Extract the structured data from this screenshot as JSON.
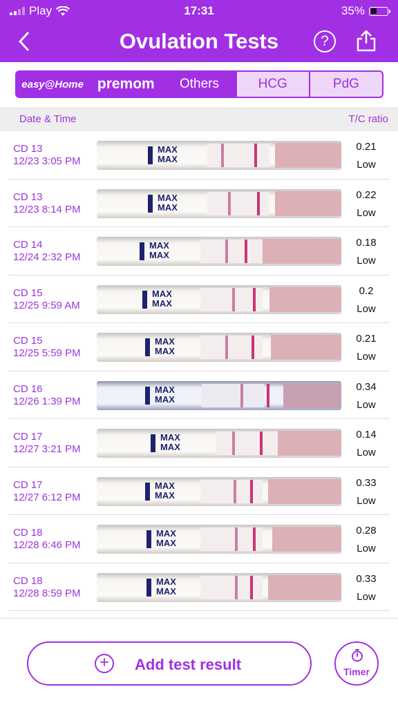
{
  "status_bar": {
    "carrier": "Play",
    "time": "17:31",
    "battery": "35%"
  },
  "header": {
    "title": "Ovulation Tests"
  },
  "tabs": [
    {
      "label": "easy@Home"
    },
    {
      "label": "premom"
    },
    {
      "label": "Others"
    },
    {
      "label": "HCG"
    },
    {
      "label": "PdG"
    }
  ],
  "table": {
    "col_date": "Date & Time",
    "col_ratio": "T/C ratio"
  },
  "rows": [
    {
      "cd": "CD 13",
      "datetime": "12/23 3:05 PM",
      "ratio": "0.21",
      "level": "Low"
    },
    {
      "cd": "CD 13",
      "datetime": "12/23 8:14 PM",
      "ratio": "0.22",
      "level": "Low"
    },
    {
      "cd": "CD 14",
      "datetime": "12/24 2:32 PM",
      "ratio": "0.18",
      "level": "Low"
    },
    {
      "cd": "CD 15",
      "datetime": "12/25 9:59 AM",
      "ratio": "0.2",
      "level": "Low"
    },
    {
      "cd": "CD 15",
      "datetime": "12/25 5:59 PM",
      "ratio": "0.21",
      "level": "Low"
    },
    {
      "cd": "CD 16",
      "datetime": "12/26 1:39 PM",
      "ratio": "0.34",
      "level": "Low"
    },
    {
      "cd": "CD 17",
      "datetime": "12/27 3:21 PM",
      "ratio": "0.14",
      "level": "Low"
    },
    {
      "cd": "CD 17",
      "datetime": "12/27 6:12 PM",
      "ratio": "0.33",
      "level": "Low"
    },
    {
      "cd": "CD 18",
      "datetime": "12/28 6:46 PM",
      "ratio": "0.28",
      "level": "Low"
    },
    {
      "cd": "CD 18",
      "datetime": "12/28 8:59 PM",
      "ratio": "0.33",
      "level": "Low"
    }
  ],
  "strip_text": "MAX",
  "footer": {
    "add_label": "Add test result",
    "timer_label": "Timer"
  },
  "colors": {
    "accent": "#a12fe3",
    "text_purple": "#9b35d8"
  }
}
